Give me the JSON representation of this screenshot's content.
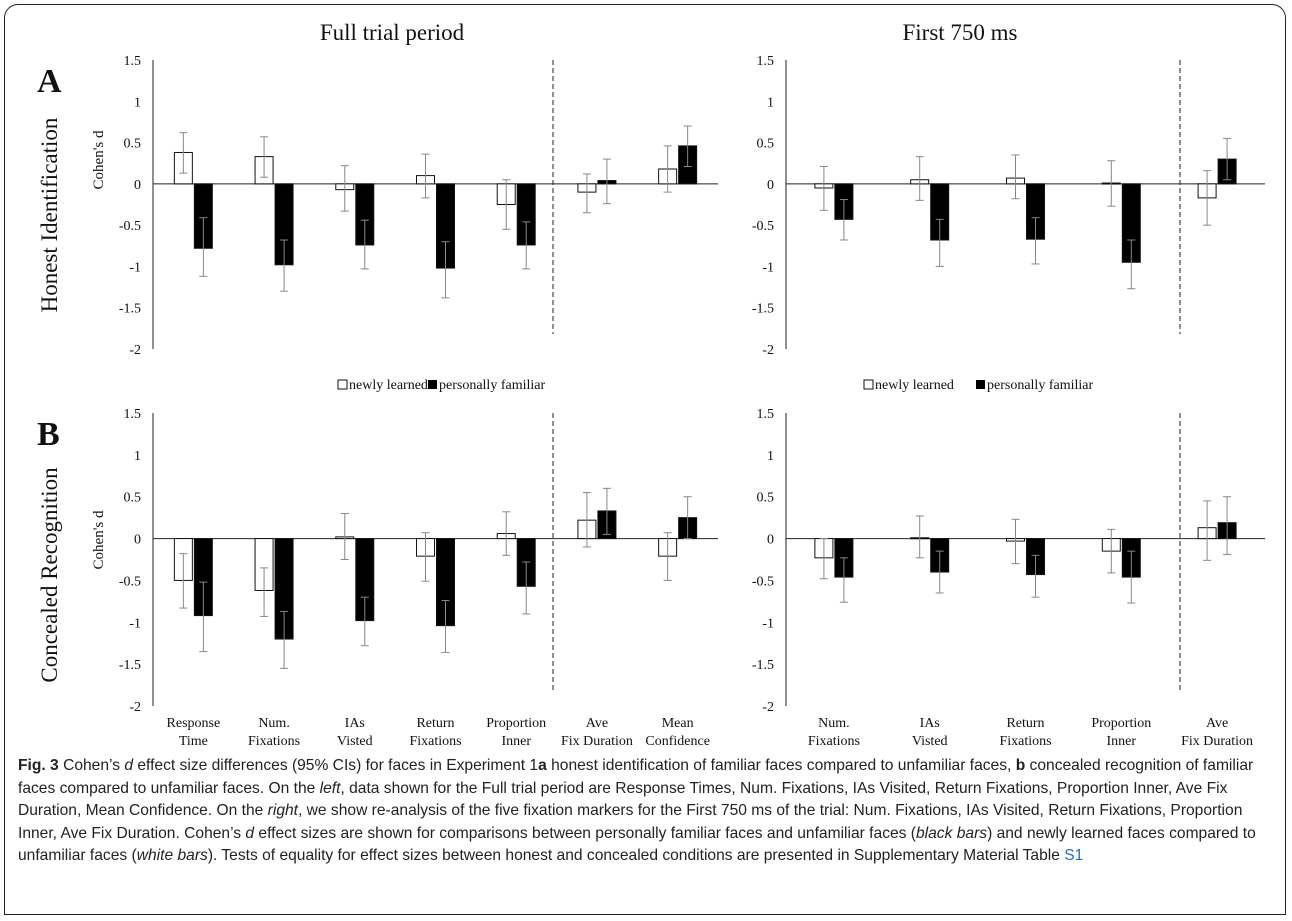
{
  "figure": {
    "panel_a_letter": "A",
    "panel_b_letter": "B",
    "row_a_label": "Honest Identification",
    "row_b_label": "Concealed Recognition",
    "y_axis_label": "Cohen's d",
    "legend": {
      "white_label": "newly learned",
      "black_label": "personally familiar"
    }
  },
  "caption": {
    "fig_label": "Fig. 3",
    "part1": " Cohen’s ",
    "d_italic": "d",
    "part2": " effect size differences (95% CIs) for faces in Experiment 1",
    "a_bold": "a",
    "part3": " honest identification of familiar faces compared to unfamiliar faces, ",
    "b_bold": "b",
    "part4": " concealed recognition of familiar faces compared to unfamiliar faces. On the ",
    "left_italic": "left",
    "part5": ", data shown for the Full trial period are Response Times, Num. Fixations, IAs Visited, Return Fixations, Proportion Inner, Ave Fix Duration, Mean Confidence. On the ",
    "right_italic": "right",
    "part6": ", we show re-analysis of the five fixation markers for the First 750 ms of the trial: Num. Fixations, IAs Visited, Return Fixations, Proportion Inner, Ave Fix Duration. Cohen’s ",
    "d2_italic": "d",
    "part7": " effect sizes are shown for comparisons between personally familiar faces and unfamiliar faces (",
    "black_bars_italic": "black bars",
    "part8": ") and newly learned faces compared to unfamiliar faces (",
    "white_bars_italic": "white bars",
    "part9": "). Tests of equality for effect sizes between honest and concealed conditions are presented in Supplementary Material Table ",
    "s1_link": "S1"
  },
  "chart_data": [
    {
      "type": "bar",
      "id": "A-full",
      "title": "Full trial period",
      "ylabel": "Cohen's d",
      "ylim": [
        -2,
        1.5
      ],
      "yticks": [
        "1.5",
        "1",
        "0.5",
        "0",
        "-0.5",
        "-1",
        "-1.5",
        "-2"
      ],
      "categories": [
        "Response Time",
        "Num. Fixations",
        "IAs Visted",
        "Return Fixations",
        "Proportion Inner",
        "Ave Fix Duration",
        "Mean Confidence"
      ],
      "separator_after_index": 4,
      "series": [
        {
          "name": "newly learned",
          "color": "#ffffff",
          "values": [
            0.38,
            0.33,
            -0.07,
            0.1,
            -0.25,
            -0.1,
            0.18
          ],
          "ci_low": [
            0.13,
            0.08,
            -0.33,
            -0.17,
            -0.55,
            -0.35,
            -0.1
          ],
          "ci_high": [
            0.62,
            0.57,
            0.22,
            0.36,
            0.05,
            0.12,
            0.46
          ]
        },
        {
          "name": "personally familiar",
          "color": "#000000",
          "values": [
            -0.78,
            -0.98,
            -0.74,
            -1.02,
            -0.74,
            0.04,
            0.46
          ],
          "ci_low": [
            -1.12,
            -1.3,
            -1.03,
            -1.38,
            -1.03,
            -0.24,
            0.21
          ],
          "ci_high": [
            -0.41,
            -0.68,
            -0.44,
            -0.7,
            -0.46,
            0.3,
            0.7
          ]
        }
      ]
    },
    {
      "type": "bar",
      "id": "A-750",
      "title": "First 750 ms",
      "ylim": [
        -2,
        1.5
      ],
      "yticks": [
        "1.5",
        "1",
        "0.5",
        "0",
        "-0.5",
        "-1",
        "-1.5",
        "-2"
      ],
      "categories": [
        "Num. Fixations",
        "IAs Visted",
        "Return Fixations",
        "Proportion Inner",
        "Ave Fix Duration"
      ],
      "separator_after_index": 3,
      "series": [
        {
          "name": "newly learned",
          "color": "#ffffff",
          "values": [
            -0.05,
            0.05,
            0.07,
            0.01,
            -0.17
          ],
          "ci_low": [
            -0.32,
            -0.2,
            -0.18,
            -0.27,
            -0.5
          ],
          "ci_high": [
            0.21,
            0.33,
            0.35,
            0.28,
            0.16
          ]
        },
        {
          "name": "personally familiar",
          "color": "#000000",
          "values": [
            -0.43,
            -0.68,
            -0.67,
            -0.95,
            0.3
          ],
          "ci_low": [
            -0.68,
            -1.0,
            -0.97,
            -1.27,
            0.05
          ],
          "ci_high": [
            -0.19,
            -0.43,
            -0.41,
            -0.68,
            0.55
          ]
        }
      ]
    },
    {
      "type": "bar",
      "id": "B-full",
      "ylabel": "Cohen's d",
      "ylim": [
        -2,
        1.5
      ],
      "yticks": [
        "1.5",
        "1",
        "0.5",
        "0",
        "-0.5",
        "-1",
        "-1.5",
        "-2"
      ],
      "categories": [
        "Response Time",
        "Num. Fixations",
        "IAs Visted",
        "Return Fixations",
        "Proportion Inner",
        "Ave Fix Duration",
        "Mean Confidence"
      ],
      "separator_after_index": 4,
      "series": [
        {
          "name": "newly learned",
          "color": "#ffffff",
          "values": [
            -0.5,
            -0.62,
            0.02,
            -0.21,
            0.06,
            0.22,
            -0.21
          ],
          "ci_low": [
            -0.83,
            -0.93,
            -0.25,
            -0.51,
            -0.2,
            -0.1,
            -0.5
          ],
          "ci_high": [
            -0.18,
            -0.35,
            0.3,
            0.07,
            0.32,
            0.55,
            0.07
          ]
        },
        {
          "name": "personally familiar",
          "color": "#000000",
          "values": [
            -0.92,
            -1.2,
            -0.98,
            -1.04,
            -0.57,
            0.33,
            0.25
          ],
          "ci_low": [
            -1.35,
            -1.55,
            -1.28,
            -1.36,
            -0.9,
            0.05,
            0.0
          ],
          "ci_high": [
            -0.52,
            -0.87,
            -0.7,
            -0.74,
            -0.28,
            0.6,
            0.5
          ]
        }
      ]
    },
    {
      "type": "bar",
      "id": "B-750",
      "ylim": [
        -2,
        1.5
      ],
      "yticks": [
        "1.5",
        "1",
        "0.5",
        "0",
        "-0.5",
        "-1",
        "-1.5",
        "-2"
      ],
      "categories": [
        "Num. Fixations",
        "IAs Visted",
        "Return Fixations",
        "Proportion Inner",
        "Ave Fix Duration"
      ],
      "separator_after_index": 3,
      "series": [
        {
          "name": "newly learned",
          "color": "#ffffff",
          "values": [
            -0.23,
            0.01,
            -0.03,
            -0.15,
            0.13
          ],
          "ci_low": [
            -0.48,
            -0.23,
            -0.3,
            -0.41,
            -0.26
          ],
          "ci_high": [
            0.0,
            0.27,
            0.23,
            0.11,
            0.45
          ]
        },
        {
          "name": "personally familiar",
          "color": "#000000",
          "values": [
            -0.46,
            -0.4,
            -0.43,
            -0.46,
            0.19
          ],
          "ci_low": [
            -0.76,
            -0.65,
            -0.7,
            -0.77,
            -0.19
          ],
          "ci_high": [
            -0.23,
            -0.15,
            -0.2,
            -0.15,
            0.5
          ]
        }
      ]
    }
  ]
}
